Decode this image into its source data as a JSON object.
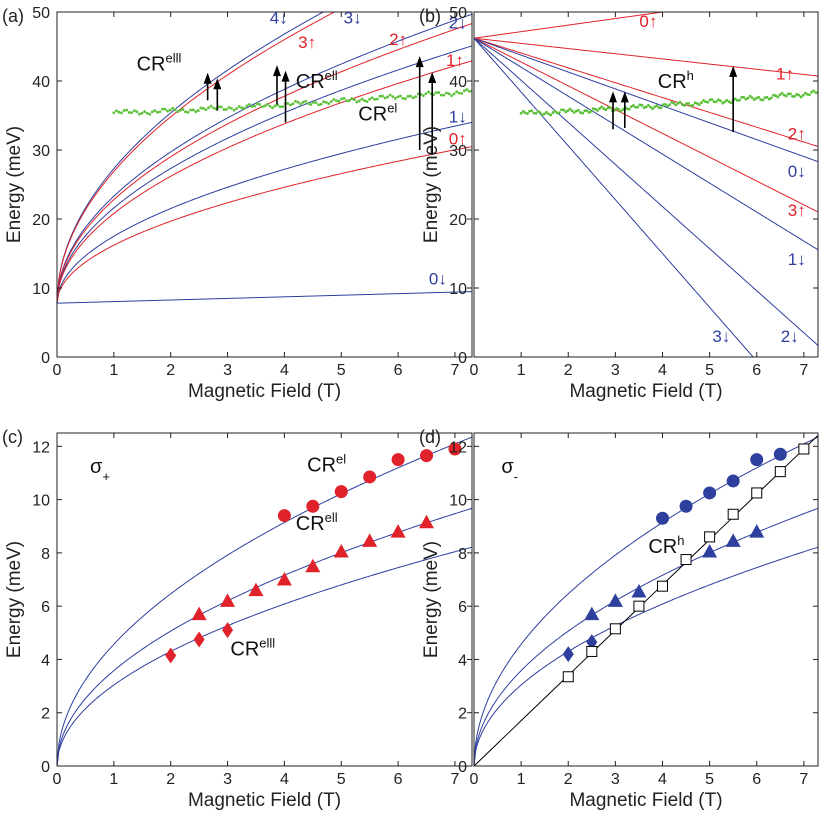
{
  "colors": {
    "blue": "#2e3f9e",
    "red": "#e0222a",
    "green": "#5cc038",
    "black": "#000000",
    "frame": "#222222"
  },
  "chart_data": [
    {
      "panel_label": "(a)",
      "type": "line",
      "xlabel": "Magnetic Field (T)",
      "ylabel": "Energy (meV)",
      "xlim": [
        0,
        7.3
      ],
      "ylim": [
        0,
        50
      ],
      "xticks": [
        "0",
        "1",
        "2",
        "3",
        "4",
        "5",
        "6",
        "7"
      ],
      "yticks": [
        "0",
        "10",
        "20",
        "30",
        "40",
        "50"
      ],
      "series": [
        {
          "label": "4↓",
          "color": "blue",
          "E0": 7.8,
          "a": 19.5,
          "lin": 0,
          "label_pos": [
            3.9,
            48.3
          ]
        },
        {
          "label": "3↑",
          "color": "red",
          "E0": 7.8,
          "a": 19.1,
          "lin": 0,
          "label_pos": [
            4.4,
            44.8
          ]
        },
        {
          "label": "3↓",
          "color": "blue",
          "E0": 7.8,
          "a": 15.5,
          "lin": 0,
          "label_pos": [
            5.2,
            48.3
          ]
        },
        {
          "label": "2↑",
          "color": "red",
          "E0": 7.8,
          "a": 15.0,
          "lin": 0,
          "label_pos": [
            6.0,
            45.2
          ]
        },
        {
          "label": "2↓",
          "color": "blue",
          "E0": 7.8,
          "a": 13.8,
          "lin": 0,
          "label_pos": [
            7.05,
            47.6
          ]
        },
        {
          "label": "1↑",
          "color": "red",
          "E0": 7.8,
          "a": 13.0,
          "lin": 0,
          "label_pos": [
            7.0,
            42.2
          ]
        },
        {
          "label": "1↓",
          "color": "blue",
          "E0": 7.8,
          "a": 9.7,
          "lin": 0,
          "label_pos": [
            7.05,
            34.0
          ]
        },
        {
          "label": "0↑",
          "color": "red",
          "E0": 7.8,
          "a": 8.4,
          "lin": 0,
          "label_pos": [
            7.05,
            30.8
          ]
        },
        {
          "label": "0↓",
          "color": "blue",
          "E0": 7.8,
          "a": 0,
          "lin": 0.23,
          "label_pos": [
            6.7,
            10.5
          ]
        }
      ],
      "green_data": {
        "x_start": 1.0,
        "x_end": 7.3,
        "y_start": 35.4,
        "y_end": 38.5
      },
      "arrows": [
        {
          "x": 2.65,
          "y1": 37.2,
          "y2": 41.2
        },
        {
          "x": 2.82,
          "y1": 35.7,
          "y2": 40.4
        },
        {
          "x": 3.87,
          "y1": 36.6,
          "y2": 42.3
        },
        {
          "x": 4.02,
          "y1": 34.0,
          "y2": 41.5
        },
        {
          "x": 6.38,
          "y1": 30.0,
          "y2": 43.6
        },
        {
          "x": 6.6,
          "y1": 29.3,
          "y2": 41.3
        }
      ],
      "annotations": [
        {
          "text": "CR",
          "sup": "elll",
          "x": 1.4,
          "y": 41.5
        },
        {
          "text": "CR",
          "sup": "ell",
          "x": 4.2,
          "y": 39.0
        },
        {
          "text": "CR",
          "sup": "el",
          "x": 5.3,
          "y": 34.3
        }
      ]
    },
    {
      "panel_label": "(b)",
      "type": "line",
      "xlabel": "Magnetic Field (T)",
      "ylabel": "Energy (meV)",
      "xlim": [
        0,
        7.3
      ],
      "ylim": [
        0,
        50
      ],
      "xticks": [
        "0",
        "1",
        "2",
        "3",
        "4",
        "5",
        "6",
        "7"
      ],
      "yticks": [
        "0",
        "10",
        "20",
        "30",
        "40",
        "50"
      ],
      "series": [
        {
          "label": "0↑",
          "color": "red",
          "E0": 46.2,
          "slope": 0.95,
          "label_pos": [
            3.7,
            47.8
          ]
        },
        {
          "label": "1↑",
          "color": "red",
          "E0": 46.2,
          "slope": -0.75,
          "label_pos": [
            6.6,
            40.2
          ]
        },
        {
          "label": "2↑",
          "color": "red",
          "E0": 46.2,
          "slope": -2.15,
          "label_pos": [
            6.85,
            31.5
          ]
        },
        {
          "label": "0↓",
          "color": "blue",
          "E0": 46.2,
          "slope": -2.45,
          "label_pos": [
            6.85,
            26.1
          ]
        },
        {
          "label": "3↑",
          "color": "red",
          "E0": 46.2,
          "slope": -3.45,
          "label_pos": [
            6.85,
            20.4
          ]
        },
        {
          "label": "1↓",
          "color": "blue",
          "E0": 46.2,
          "slope": -4.2,
          "label_pos": [
            6.85,
            13.3
          ]
        },
        {
          "label": "2↓",
          "color": "blue",
          "E0": 46.2,
          "slope": -6.1,
          "label_pos": [
            6.7,
            2.2
          ]
        },
        {
          "label": "3↓",
          "color": "blue",
          "E0": 46.2,
          "slope": -7.8,
          "label_pos": [
            5.25,
            2.2
          ]
        }
      ],
      "green_data": {
        "x_start": 1.0,
        "x_end": 7.3,
        "y_start": 35.3,
        "y_end": 38.3
      },
      "arrows": [
        {
          "x": 2.95,
          "y1": 33.0,
          "y2": 38.5
        },
        {
          "x": 3.2,
          "y1": 33.2,
          "y2": 38.5
        },
        {
          "x": 5.5,
          "y1": 32.6,
          "y2": 42.2
        }
      ],
      "annotations": [
        {
          "text": "CR",
          "sup": "h",
          "x": 3.9,
          "y": 39.0
        }
      ]
    },
    {
      "panel_label": "(c)",
      "type": "scatter",
      "xlabel": "Magnetic Field (T)",
      "ylabel": "Energy (meV)",
      "xlim": [
        0,
        7.3
      ],
      "ylim": [
        0,
        12.5
      ],
      "xticks": [
        "0",
        "1",
        "2",
        "3",
        "4",
        "5",
        "6",
        "7"
      ],
      "yticks": [
        "0",
        "2",
        "4",
        "6",
        "8",
        "10",
        "12"
      ],
      "sigma": {
        "symbol": "σ",
        "sub": "+",
        "x": 0.58,
        "y": 11.0
      },
      "fits": [
        {
          "a": 4.57,
          "color": "blue"
        },
        {
          "a": 3.58,
          "color": "blue"
        },
        {
          "a": 3.04,
          "color": "blue"
        }
      ],
      "series": [
        {
          "name": "CR^el",
          "marker": "circle",
          "color": "red",
          "x": [
            4.0,
            4.5,
            5.0,
            5.5,
            6.0,
            6.5,
            7.0
          ],
          "y": [
            9.4,
            9.75,
            10.3,
            10.85,
            11.5,
            11.65,
            11.9
          ]
        },
        {
          "name": "CR^ell",
          "marker": "triangle",
          "color": "red",
          "x": [
            2.5,
            3.0,
            3.5,
            4.0,
            4.5,
            5.0,
            5.5,
            6.0,
            6.5
          ],
          "y": [
            5.7,
            6.2,
            6.6,
            7.0,
            7.5,
            8.05,
            8.45,
            8.8,
            9.15
          ]
        },
        {
          "name": "CR^elll",
          "marker": "diamond",
          "color": "red",
          "x": [
            2.0,
            2.5,
            3.0
          ],
          "y": [
            4.15,
            4.75,
            5.1
          ]
        }
      ],
      "annotations": [
        {
          "text": "CR",
          "sup": "el",
          "x": 4.4,
          "y": 11.05
        },
        {
          "text": "CR",
          "sup": "ell",
          "x": 4.2,
          "y": 8.85
        },
        {
          "text": "CR",
          "sup": "elll",
          "x": 3.05,
          "y": 4.15
        }
      ]
    },
    {
      "panel_label": "(d)",
      "type": "scatter",
      "xlabel": "Magnetic Field (T)",
      "ylabel": "Energy (meV)",
      "xlim": [
        0,
        7.3
      ],
      "ylim": [
        0,
        12.5
      ],
      "xticks": [
        "0",
        "1",
        "2",
        "3",
        "4",
        "5",
        "6",
        "7"
      ],
      "yticks": [
        "0",
        "2",
        "4",
        "6",
        "8",
        "10",
        "12"
      ],
      "sigma": {
        "symbol": "σ",
        "sub": "-",
        "x": 0.58,
        "y": 11.0
      },
      "fits": [
        {
          "a": 4.57,
          "color": "blue"
        },
        {
          "a": 3.58,
          "color": "blue"
        },
        {
          "a": 3.04,
          "color": "blue"
        }
      ],
      "linear_fit": {
        "slope": 1.7,
        "color": "black"
      },
      "series": [
        {
          "name": "circles",
          "marker": "circle",
          "color": "blue",
          "x": [
            4.0,
            4.5,
            5.0,
            5.5,
            6.0,
            6.5
          ],
          "y": [
            9.3,
            9.75,
            10.25,
            10.7,
            11.5,
            11.7
          ]
        },
        {
          "name": "triangles",
          "marker": "triangle",
          "color": "blue",
          "x": [
            2.5,
            3.0,
            3.5,
            5.0,
            5.5,
            6.0
          ],
          "y": [
            5.7,
            6.2,
            6.55,
            8.05,
            8.45,
            8.8
          ]
        },
        {
          "name": "diamonds",
          "marker": "diamond",
          "color": "blue",
          "x": [
            2.0,
            2.5
          ],
          "y": [
            4.2,
            4.65
          ]
        },
        {
          "name": "CR^h",
          "marker": "square",
          "color": "black",
          "x": [
            2.0,
            2.5,
            3.0,
            3.5,
            4.0,
            4.5,
            5.0,
            5.5,
            6.0,
            6.5,
            7.0
          ],
          "y": [
            3.35,
            4.3,
            5.15,
            6.0,
            6.75,
            7.75,
            8.6,
            9.45,
            10.25,
            11.05,
            11.9
          ]
        }
      ],
      "annotations": [
        {
          "text": "CR",
          "sup": "h",
          "x": 3.7,
          "y": 8.0
        }
      ]
    }
  ]
}
